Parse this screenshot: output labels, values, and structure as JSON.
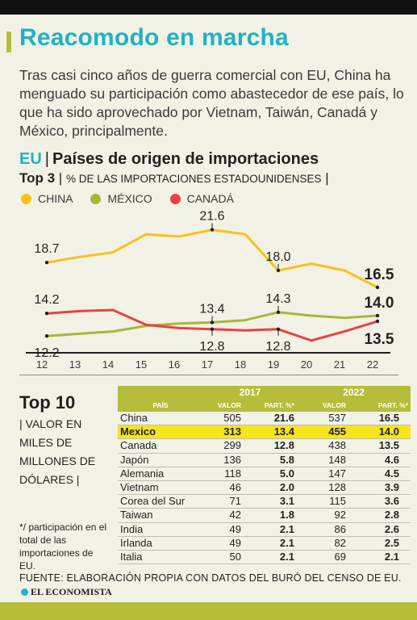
{
  "headline": "Reacomodo en marcha",
  "lead": "Tras casi cinco años de guerra comercial con EU, China ha menguado su participación como abastecedor de ese país, lo que ha sido aprovechado por Vietnam, Taiwán, Canadá y México, principalmente.",
  "section": {
    "prefix": "EU",
    "title": "Países de origen de importaciones"
  },
  "subtitle": {
    "lead": "Top 3",
    "text": "% DE LAS IMPORTACIONES ESTADOUNIDENSES"
  },
  "colors": {
    "china": "#f7c21b",
    "mexico": "#a8b53a",
    "canada": "#e9423f",
    "accent": "#1db3c4",
    "highlight": "#f5e51c"
  },
  "chart_data": {
    "type": "line",
    "x": [
      "12",
      "13",
      "14",
      "15",
      "16",
      "17",
      "18",
      "19",
      "20",
      "21",
      "22"
    ],
    "ylim": [
      11,
      23
    ],
    "series": [
      {
        "name": "CHINA",
        "color": "#f7c21b",
        "values": [
          18.7,
          19.2,
          19.6,
          21.2,
          21.0,
          21.6,
          21.2,
          18.0,
          18.6,
          18.0,
          16.5
        ]
      },
      {
        "name": "MÉXICO",
        "color": "#a8b53a",
        "values": [
          12.2,
          12.4,
          12.6,
          13.1,
          13.3,
          13.4,
          13.6,
          14.3,
          14.0,
          13.8,
          14.0
        ]
      },
      {
        "name": "CANADÁ",
        "color": "#e9423f",
        "values": [
          14.2,
          14.4,
          14.5,
          13.2,
          12.9,
          12.8,
          12.7,
          12.8,
          11.8,
          12.6,
          13.5
        ]
      }
    ],
    "annotations": [
      {
        "series": 0,
        "index": 0,
        "label": "18.7",
        "pos": "above",
        "bold": false
      },
      {
        "series": 0,
        "index": 5,
        "label": "21.6",
        "pos": "above",
        "bold": false
      },
      {
        "series": 0,
        "index": 7,
        "label": "18.0",
        "pos": "above",
        "bold": false
      },
      {
        "series": 0,
        "index": 10,
        "label": "16.5",
        "pos": "above",
        "bold": true
      },
      {
        "series": 1,
        "index": 0,
        "label": "12.2",
        "pos": "below",
        "bold": false
      },
      {
        "series": 1,
        "index": 5,
        "label": "13.4",
        "pos": "above",
        "bold": false
      },
      {
        "series": 1,
        "index": 7,
        "label": "14.3",
        "pos": "above",
        "bold": false
      },
      {
        "series": 1,
        "index": 10,
        "label": "14.0",
        "pos": "above",
        "bold": true
      },
      {
        "series": 2,
        "index": 0,
        "label": "14.2",
        "pos": "above",
        "bold": false
      },
      {
        "series": 2,
        "index": 5,
        "label": "12.8",
        "pos": "below",
        "bold": false
      },
      {
        "series": 2,
        "index": 7,
        "label": "12.8",
        "pos": "below",
        "bold": false
      },
      {
        "series": 2,
        "index": 10,
        "label": "13.5",
        "pos": "below",
        "bold": true
      }
    ]
  },
  "top10": {
    "title": "Top 10",
    "subtitle": "| VALOR EN MILES DE MILLONES DE DÓLARES |",
    "note": "*/ participación en el total de las importaciones de EU.",
    "years": [
      "2017",
      "2022"
    ],
    "headers": {
      "country": "PAÍS",
      "value": "VALOR",
      "share": "PART. %*"
    },
    "rows": [
      {
        "country": "China",
        "v17": "505",
        "p17": "21.6",
        "v22": "537",
        "p22": "16.5"
      },
      {
        "country": "Mexico",
        "v17": "313",
        "p17": "13.4",
        "v22": "455",
        "p22": "14.0"
      },
      {
        "country": "Canada",
        "v17": "299",
        "p17": "12.8",
        "v22": "438",
        "p22": "13.5"
      },
      {
        "country": "Japón",
        "v17": "136",
        "p17": "5.8",
        "v22": "148",
        "p22": "4.6"
      },
      {
        "country": "Alemania",
        "v17": "118",
        "p17": "5.0",
        "v22": "147",
        "p22": "4.5"
      },
      {
        "country": "Vietnam",
        "v17": "46",
        "p17": "2.0",
        "v22": "128",
        "p22": "3.9"
      },
      {
        "country": "Corea del Sur",
        "v17": "71",
        "p17": "3.1",
        "v22": "115",
        "p22": "3.6"
      },
      {
        "country": "Taiwan",
        "v17": "42",
        "p17": "1.8",
        "v22": "92",
        "p22": "2.8"
      },
      {
        "country": "India",
        "v17": "49",
        "p17": "2.1",
        "v22": "86",
        "p22": "2.6"
      },
      {
        "country": "Irlanda",
        "v17": "49",
        "p17": "2.1",
        "v22": "82",
        "p22": "2.5"
      },
      {
        "country": "Italia",
        "v17": "50",
        "p17": "2.1",
        "v22": "69",
        "p22": "2.1"
      }
    ]
  },
  "source": "FUENTE: ELABORACIÓN PROPIA CON DATOS DEL BURÓ DEL CENSO DE EU.",
  "brand": "EL ECONOMISTA"
}
